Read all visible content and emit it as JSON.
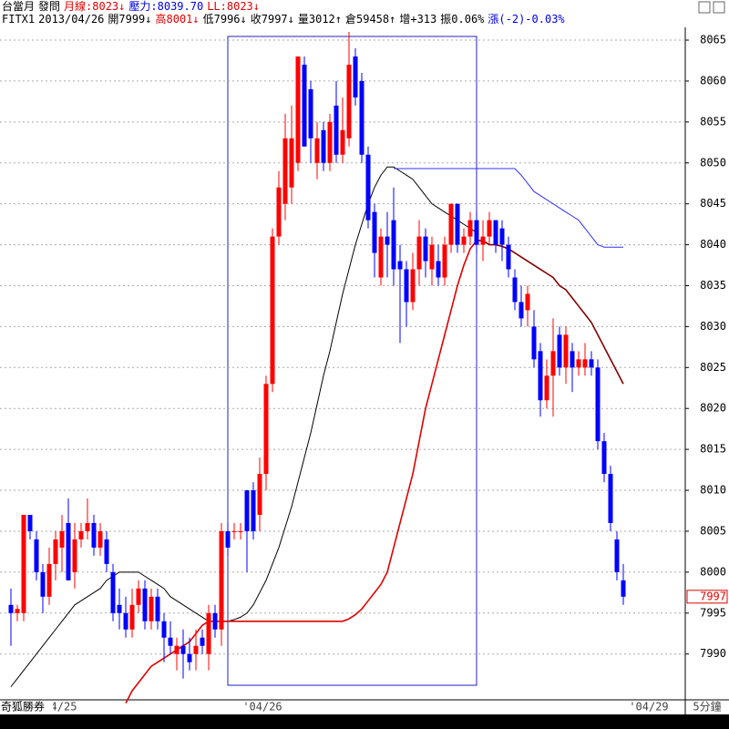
{
  "header": {
    "line1": [
      {
        "text": "台當月",
        "color": "#000000"
      },
      {
        "text": "發問",
        "color": "#000000"
      },
      {
        "text": "月線:8023↓",
        "color": "#e00000"
      },
      {
        "text": "壓力:8039.70",
        "color": "#0000e0"
      },
      {
        "text": "LL:8023↓",
        "color": "#e00000"
      }
    ],
    "line2": [
      {
        "text": "FITX1",
        "color": "#000000"
      },
      {
        "text": "2013/04/26",
        "color": "#000000"
      },
      {
        "text": "開7999↓",
        "color": "#000000"
      },
      {
        "text": "高8001↓",
        "color": "#e00000"
      },
      {
        "text": "低7996↓",
        "color": "#000000"
      },
      {
        "text": "收7997↓",
        "color": "#000000"
      },
      {
        "text": "量3012↑",
        "color": "#000000"
      },
      {
        "text": "倉59458↑",
        "color": "#000000"
      },
      {
        "text": "增+313",
        "color": "#000000"
      },
      {
        "text": "振0.06%",
        "color": "#000000"
      },
      {
        "text": "漲(-2)-0.03%",
        "color": "#0000e0"
      }
    ]
  },
  "footer": {
    "brand": "奇狐勝券",
    "period": "5分鐘"
  },
  "chart_data": {
    "type": "candlestick",
    "x_labels": [
      "4/25",
      "'04/26",
      "'04/29"
    ],
    "up_color": "#ff0000",
    "down_color": "#0000ff",
    "ylim": [
      7984.4,
      8069.9
    ],
    "yticks": [
      7990,
      7995,
      8000,
      8005,
      8010,
      8015,
      8020,
      8025,
      8030,
      8035,
      8040,
      8045,
      8050,
      8055,
      8060,
      8065
    ],
    "grid": true,
    "last_price": 7997,
    "open": [
      7996,
      7995,
      7995,
      8007,
      8004,
      8000,
      7997,
      8001,
      8003,
      8006,
      8000,
      8004,
      8005,
      8006,
      8003,
      8004,
      8000,
      7996,
      7995,
      7993,
      7996,
      7998,
      7994,
      7997,
      7994,
      7992,
      7990,
      7991,
      7990,
      7990,
      7992,
      7990,
      7995,
      7993,
      8005,
      8005,
      8005,
      8010,
      8010,
      8007,
      8012,
      8023,
      8041,
      8045,
      8047,
      8050,
      8062,
      8059,
      8050,
      8054,
      8050,
      8057,
      8051,
      8053,
      8063,
      8060,
      8051,
      8044,
      8036,
      8041,
      8043,
      8038,
      8037,
      8033,
      8037,
      8041,
      8037,
      8038,
      8036,
      8040,
      8045,
      8040,
      8041,
      8043,
      8040,
      8041,
      8043,
      8042,
      8040,
      8036,
      8033,
      8032,
      8030,
      8027,
      8021,
      8024,
      8029,
      8025,
      8027,
      8025,
      8025,
      8026,
      8025,
      8016,
      8012,
      8004,
      7999
    ],
    "high": [
      7998,
      7996,
      8007,
      8007,
      8005,
      8001,
      8003,
      8005,
      8007,
      8009,
      8006,
      8006,
      8009,
      8007,
      8006,
      8005,
      8001,
      7998,
      7997,
      7998,
      7999,
      7999,
      7998,
      7998,
      7995,
      7994,
      7992,
      7993,
      7992,
      7993,
      7993,
      7996,
      7996,
      8006,
      8006,
      8006,
      8006,
      8010,
      8011,
      8014,
      8024,
      8042,
      8049,
      8056,
      8057,
      8063,
      8063,
      8060,
      8055,
      8055,
      8056,
      8060,
      8058,
      8066,
      8064,
      8061,
      8052,
      8045,
      8042,
      8044,
      8047,
      8040,
      8038,
      8039,
      8043,
      8042,
      8041,
      8040,
      8041,
      8045,
      8045,
      8042,
      8044,
      8044,
      8043,
      8044,
      8043,
      8043,
      8041,
      8037,
      8035,
      8035,
      8032,
      8028,
      8026,
      8031,
      8030,
      8030,
      8028,
      8027,
      8028,
      8027,
      8026,
      8017,
      8013,
      8005,
      8001
    ],
    "low": [
      7991,
      7994,
      7994,
      8004,
      7999,
      7995,
      7996,
      7999,
      8000,
      7999,
      7998,
      8003,
      8004,
      8002,
      8002,
      8000,
      7994,
      7993,
      7992,
      7992,
      7995,
      7993,
      7993,
      7993,
      7989,
      7990,
      7988,
      7987,
      7988,
      7988,
      7990,
      7988,
      7992,
      7991,
      8002,
      8004,
      8004,
      8000,
      8004,
      8005,
      8010,
      8022,
      8040,
      8043,
      8045,
      8049,
      8052,
      8050,
      8048,
      8049,
      8049,
      8050,
      8050,
      8052,
      8057,
      8050,
      8042,
      8036,
      8035,
      8036,
      8035,
      8028,
      8030,
      8032,
      8035,
      8036,
      8035,
      8035,
      8035,
      8039,
      8039,
      8039,
      8040,
      8039,
      8038,
      8040,
      8039,
      8038,
      8036,
      8032,
      8030,
      8030,
      8025,
      8019,
      8020,
      8019,
      8024,
      8023,
      8022,
      8024,
      8024,
      8024,
      8015,
      8011,
      8005,
      7999,
      7996
    ],
    "close": [
      7995,
      7995.5,
      8007,
      8005,
      8000,
      7997,
      8001,
      8004,
      8005,
      7999,
      8004,
      8005,
      8006,
      8003,
      8005,
      8001,
      7995,
      7995,
      7993,
      7996,
      7998,
      7994,
      7997,
      7994,
      7992,
      7991,
      7991,
      7990,
      7989,
      7991,
      7991,
      7995,
      7993,
      8005,
      8003,
      8005,
      8005,
      8005,
      8005,
      8012,
      8023,
      8041,
      8047,
      8053,
      8053,
      8063,
      8052,
      8053,
      8053,
      8050,
      8055,
      8051,
      8054,
      8062,
      8058,
      8051,
      8043,
      8039,
      8041,
      8040,
      8037,
      8037,
      8033,
      8037,
      8041,
      8038,
      8040,
      8036,
      8040,
      8045,
      8040,
      8041,
      8043,
      8040,
      8041,
      8043,
      8040,
      8040,
      8037,
      8033,
      8031,
      8034,
      8026,
      8021,
      8024,
      8027,
      8025,
      8029,
      8025,
      8026,
      8026,
      8025,
      8016,
      8012,
      8006,
      8000,
      7997
    ],
    "lines": [
      {
        "color": "#000000",
        "values": [
          7986,
          7987,
          7988,
          7989,
          7990,
          7991,
          7992,
          7993,
          7994,
          7995,
          7996,
          7996.5,
          7997,
          7997.5,
          7998,
          7999,
          7999.5,
          8000,
          8000,
          8000,
          8000,
          7999.5,
          7999,
          7998.5,
          7998,
          7997,
          7996.5,
          7996,
          7995.5,
          7995,
          7994.5,
          7994,
          7994,
          7994,
          7994,
          7994.2,
          7994.5,
          7995,
          7996,
          7997.5,
          7999,
          8001,
          8003,
          8005.5,
          8008,
          8011,
          8014,
          8017,
          8020.5,
          8024,
          8027,
          8030.5,
          8034,
          8037,
          8040,
          8042.5,
          8045,
          8047,
          8048.5,
          8049.5,
          8049.5,
          8049,
          8048.5,
          8048,
          8047,
          8046,
          8045,
          8044.5,
          8044,
          8043.5,
          8043,
          8042.5,
          8042,
          8041.5,
          null,
          null,
          null,
          null,
          null,
          null,
          null,
          null,
          null,
          null,
          null,
          null,
          null,
          null,
          null,
          null,
          null,
          null,
          null,
          null,
          null,
          null,
          null
        ]
      },
      {
        "color": "#e00000",
        "values": [
          null,
          null,
          null,
          null,
          null,
          null,
          null,
          null,
          null,
          null,
          null,
          null,
          null,
          null,
          null,
          null,
          null,
          null,
          7984,
          7985.5,
          7986.5,
          7987.5,
          7988.5,
          7989,
          7989.5,
          7990,
          7990.5,
          7991,
          7991.5,
          7992.5,
          7993.5,
          7994,
          7994,
          7994,
          7994,
          7994,
          7994,
          7994,
          7994,
          7994,
          7994,
          7994,
          7994,
          7994,
          7994,
          7994,
          7994,
          7994,
          7994,
          7994,
          7994,
          7994,
          7994,
          7994.3,
          7994.8,
          7995.5,
          7996.5,
          7997.5,
          7998.5,
          8000,
          8003,
          8006,
          8009,
          8012,
          8016,
          8020,
          8023,
          8026,
          8029,
          8032,
          8035,
          8037.5,
          8039.5,
          8040.5,
          null,
          null,
          null,
          null,
          null,
          null,
          null,
          null,
          null,
          null,
          null,
          null,
          null,
          null,
          null,
          null,
          null,
          null,
          null,
          null,
          null,
          null,
          null
        ]
      },
      {
        "color": "#800000",
        "values": [
          null,
          null,
          null,
          null,
          null,
          null,
          null,
          null,
          null,
          null,
          null,
          null,
          null,
          null,
          null,
          null,
          null,
          null,
          null,
          null,
          null,
          null,
          null,
          null,
          null,
          null,
          null,
          null,
          null,
          null,
          null,
          null,
          null,
          null,
          null,
          null,
          null,
          null,
          null,
          null,
          null,
          null,
          null,
          null,
          null,
          null,
          null,
          null,
          null,
          null,
          null,
          null,
          null,
          null,
          null,
          null,
          null,
          null,
          null,
          null,
          null,
          null,
          null,
          null,
          null,
          null,
          null,
          null,
          null,
          null,
          null,
          null,
          null,
          8040.5,
          8040.5,
          8040,
          8040,
          8039.8,
          8039.5,
          8039,
          8038.5,
          8038,
          8037.5,
          8037,
          8036.5,
          8036,
          8035,
          8034.5,
          8033.5,
          8032.5,
          8031.5,
          8030.5,
          8029,
          8027.5,
          8026,
          8024.5,
          8023
        ]
      },
      {
        "color": "#3030ff",
        "values": [
          null,
          null,
          null,
          null,
          null,
          null,
          null,
          null,
          null,
          null,
          null,
          null,
          null,
          null,
          null,
          null,
          null,
          null,
          null,
          null,
          null,
          null,
          null,
          null,
          null,
          null,
          null,
          null,
          null,
          null,
          null,
          null,
          null,
          null,
          null,
          null,
          null,
          null,
          null,
          null,
          null,
          null,
          null,
          null,
          null,
          null,
          null,
          null,
          null,
          null,
          null,
          null,
          null,
          null,
          null,
          null,
          null,
          null,
          null,
          null,
          8049.3,
          8049.3,
          8049.3,
          8049.3,
          8049.3,
          8049.3,
          8049.3,
          8049.3,
          8049.3,
          8049.3,
          8049.3,
          8049.3,
          8049.3,
          8049.3,
          8049.3,
          8049.3,
          8049.3,
          8049.3,
          8049.3,
          8049.3,
          8048.5,
          8047.5,
          8046.5,
          8046,
          8045.5,
          8045,
          8044.5,
          8044,
          8043.5,
          8043,
          8042,
          8041,
          8040,
          8039.7,
          8039.7,
          8039.7,
          8039.7
        ]
      }
    ]
  }
}
